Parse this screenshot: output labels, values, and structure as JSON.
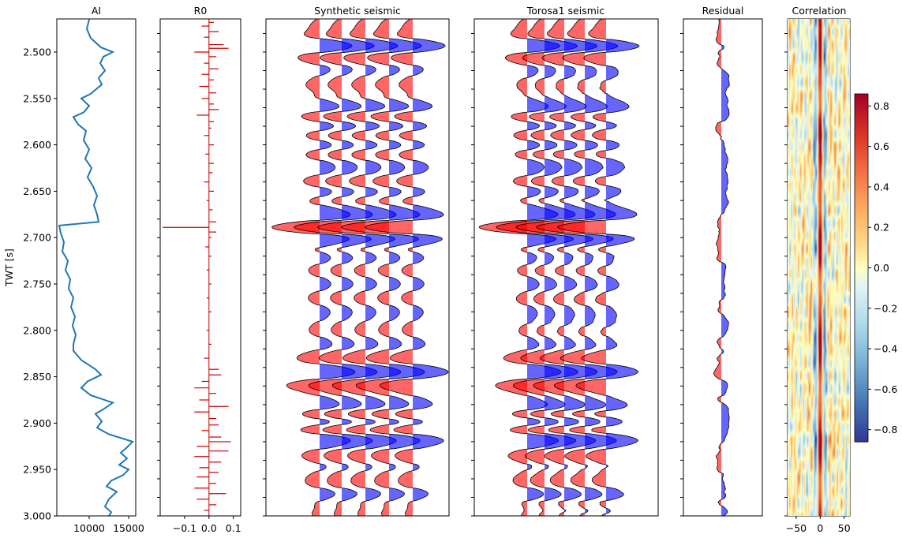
{
  "chart_data": [
    {
      "type": "line",
      "title": "AI",
      "ylabel": "TWT [s]",
      "ylim": [
        3.0,
        2.4643
      ],
      "xlim": [
        5900,
        15900
      ],
      "xticks": [
        "10000",
        "15000"
      ],
      "yticks": [
        "2.500",
        "2.550",
        "2.600",
        "2.650",
        "2.700",
        "2.750",
        "2.800",
        "2.850",
        "2.900",
        "2.950",
        "3.000"
      ],
      "color": "#1f77b4",
      "points": [
        [
          2.465,
          10000
        ],
        [
          2.475,
          9700
        ],
        [
          2.485,
          10200
        ],
        [
          2.495,
          11500
        ],
        [
          2.5,
          13000
        ],
        [
          2.505,
          11800
        ],
        [
          2.512,
          11400
        ],
        [
          2.52,
          12000
        ],
        [
          2.528,
          11200
        ],
        [
          2.535,
          11600
        ],
        [
          2.545,
          10200
        ],
        [
          2.55,
          9000
        ],
        [
          2.558,
          10000
        ],
        [
          2.565,
          9300
        ],
        [
          2.57,
          8000
        ],
        [
          2.578,
          8600
        ],
        [
          2.585,
          9600
        ],
        [
          2.595,
          9300
        ],
        [
          2.605,
          10000
        ],
        [
          2.615,
          9500
        ],
        [
          2.625,
          10300
        ],
        [
          2.635,
          9800
        ],
        [
          2.645,
          10500
        ],
        [
          2.655,
          11000
        ],
        [
          2.665,
          10600
        ],
        [
          2.675,
          11000
        ],
        [
          2.683,
          11200
        ],
        [
          2.687,
          6200
        ],
        [
          2.695,
          6400
        ],
        [
          2.705,
          6800
        ],
        [
          2.715,
          6600
        ],
        [
          2.725,
          7300
        ],
        [
          2.735,
          7000
        ],
        [
          2.745,
          7600
        ],
        [
          2.755,
          7400
        ],
        [
          2.765,
          8000
        ],
        [
          2.775,
          7700
        ],
        [
          2.785,
          8200
        ],
        [
          2.795,
          7900
        ],
        [
          2.805,
          8300
        ],
        [
          2.815,
          8000
        ],
        [
          2.822,
          8000
        ],
        [
          2.832,
          9000
        ],
        [
          2.842,
          10800
        ],
        [
          2.848,
          11500
        ],
        [
          2.855,
          9800
        ],
        [
          2.862,
          9000
        ],
        [
          2.87,
          10200
        ],
        [
          2.878,
          13000
        ],
        [
          2.885,
          11800
        ],
        [
          2.89,
          10800
        ],
        [
          2.898,
          11600
        ],
        [
          2.905,
          11000
        ],
        [
          2.912,
          12500
        ],
        [
          2.92,
          15500
        ],
        [
          2.926,
          14800
        ],
        [
          2.932,
          14000
        ],
        [
          2.938,
          14800
        ],
        [
          2.945,
          13800
        ],
        [
          2.95,
          15000
        ],
        [
          2.956,
          14300
        ],
        [
          2.962,
          12800
        ],
        [
          2.968,
          12200
        ],
        [
          2.974,
          13500
        ],
        [
          2.982,
          12500
        ],
        [
          2.99,
          12000
        ],
        [
          2.996,
          12800
        ],
        [
          3.0,
          12500
        ]
      ]
    },
    {
      "type": "bar",
      "title": "R0",
      "xlim": [
        -0.2,
        0.13
      ],
      "xticks": [
        "−0.1",
        "0.0",
        "0.1"
      ],
      "color": "#cc0000",
      "spikes": [
        [
          2.468,
          0.02
        ],
        [
          2.472,
          -0.03
        ],
        [
          2.478,
          0.04
        ],
        [
          2.484,
          -0.02
        ],
        [
          2.492,
          0.06
        ],
        [
          2.496,
          0.08
        ],
        [
          2.5,
          -0.06
        ],
        [
          2.505,
          0.03
        ],
        [
          2.512,
          -0.02
        ],
        [
          2.518,
          0.04
        ],
        [
          2.524,
          -0.03
        ],
        [
          2.53,
          0.02
        ],
        [
          2.537,
          -0.04
        ],
        [
          2.544,
          0.03
        ],
        [
          2.55,
          -0.03
        ],
        [
          2.556,
          0.02
        ],
        [
          2.562,
          0.04
        ],
        [
          2.568,
          -0.05
        ],
        [
          2.575,
          0.02
        ],
        [
          2.582,
          0.01
        ],
        [
          2.59,
          -0.02
        ],
        [
          2.6,
          0.02
        ],
        [
          2.61,
          -0.015
        ],
        [
          2.62,
          0.02
        ],
        [
          2.63,
          0.015
        ],
        [
          2.64,
          -0.02
        ],
        [
          2.65,
          0.02
        ],
        [
          2.66,
          -0.01
        ],
        [
          2.67,
          0.015
        ],
        [
          2.683,
          0.03
        ],
        [
          2.689,
          -0.19
        ],
        [
          2.694,
          0.03
        ],
        [
          2.7,
          0.01
        ],
        [
          2.71,
          -0.015
        ],
        [
          2.72,
          0.01
        ],
        [
          2.735,
          -0.01
        ],
        [
          2.75,
          0.01
        ],
        [
          2.765,
          -0.01
        ],
        [
          2.78,
          0.01
        ],
        [
          2.8,
          -0.01
        ],
        [
          2.815,
          0.01
        ],
        [
          2.83,
          -0.02
        ],
        [
          2.842,
          0.04
        ],
        [
          2.848,
          0.05
        ],
        [
          2.855,
          -0.03
        ],
        [
          2.862,
          -0.06
        ],
        [
          2.868,
          0.03
        ],
        [
          2.875,
          -0.04
        ],
        [
          2.882,
          0.08
        ],
        [
          2.888,
          -0.06
        ],
        [
          2.895,
          0.03
        ],
        [
          2.902,
          0.04
        ],
        [
          2.908,
          -0.03
        ],
        [
          2.915,
          0.05
        ],
        [
          2.92,
          0.09
        ],
        [
          2.925,
          -0.05
        ],
        [
          2.93,
          0.08
        ],
        [
          2.936,
          -0.06
        ],
        [
          2.942,
          0.05
        ],
        [
          2.948,
          -0.04
        ],
        [
          2.953,
          0.04
        ],
        [
          2.958,
          -0.05
        ],
        [
          2.965,
          0.03
        ],
        [
          2.97,
          -0.06
        ],
        [
          2.976,
          0.07
        ],
        [
          2.982,
          -0.05
        ],
        [
          2.988,
          0.03
        ],
        [
          2.994,
          -0.02
        ]
      ]
    },
    {
      "type": "line",
      "title": "Synthetic seismic",
      "traces": 5,
      "positive_color": "#0000ff",
      "negative_color": "#ff0000"
    },
    {
      "type": "line",
      "title": "Torosa1 seismic",
      "traces": 5,
      "positive_color": "#0000ff",
      "negative_color": "#ff0000"
    },
    {
      "type": "line",
      "title": "Residual",
      "traces": 1
    },
    {
      "type": "heatmap",
      "title": "Correlation",
      "xlim": [
        -68,
        62
      ],
      "xticks": [
        "−50",
        "0",
        "50"
      ],
      "colormap": "RdYlBu_r",
      "colorbar": {
        "range": [
          -0.86,
          0.86
        ],
        "ticks": [
          "0.8",
          "0.6",
          "0.4",
          "0.2",
          "0.0",
          "−0.2",
          "−0.4",
          "−0.6",
          "−0.8"
        ]
      }
    }
  ]
}
